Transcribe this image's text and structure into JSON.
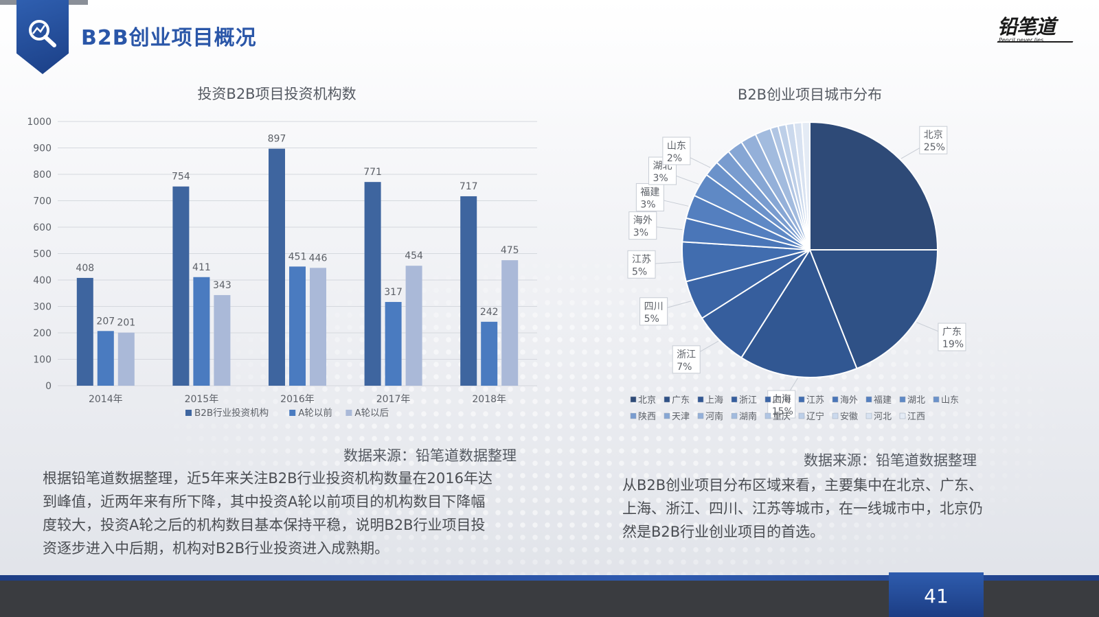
{
  "page": {
    "title": "B2B创业项目概况",
    "logo_main": "铅笔道",
    "logo_sub": "Pencil never lies",
    "page_number": "41",
    "left_source": "数据来源：铅笔道数据整理",
    "right_source": "数据来源：铅笔道数据整理",
    "left_paragraph": [
      "根据铅笔道数据整理，近5年来关注B2B行业投资机构数量在2016年达",
      "到峰值，近两年来有所下降，其中投资A轮以前项目的机构数目下降幅",
      "度较大，投资A轮之后的机构数目基本保持平稳，说明B2B行业项目投",
      "资逐步进入中后期，机构对B2B行业投资进入成熟期。"
    ],
    "right_paragraph": [
      "从B2B创业项目分布区域来看，主要集中在北京、广东、",
      "上海、浙江、四川、江苏等城市，在一线城市中，北京仍",
      "然是B2B行业创业项目的首选。"
    ]
  },
  "chart_data": [
    {
      "type": "bar",
      "title": "投资B2B项目投资机构数",
      "categories": [
        "2014年",
        "2015年",
        "2016年",
        "2017年",
        "2018年"
      ],
      "series": [
        {
          "name": "B2B行业投资机构",
          "values": [
            408,
            754,
            897,
            771,
            717
          ],
          "color": "#3e659f"
        },
        {
          "name": "A轮以前",
          "values": [
            207,
            411,
            451,
            317,
            242
          ],
          "color": "#4a7bc0"
        },
        {
          "name": "A轮以后",
          "values": [
            201,
            343,
            446,
            454,
            475
          ],
          "color": "#aab9d8"
        }
      ],
      "ylim": [
        0,
        1000
      ],
      "yticks": [
        "0",
        "100",
        "200",
        "300",
        "400",
        "500",
        "600",
        "700",
        "800",
        "900",
        "1000"
      ],
      "grid": true,
      "legend": "bottom"
    },
    {
      "type": "pie",
      "title": "B2B创业项目城市分布",
      "slices": [
        {
          "label": "北京",
          "value": 25,
          "pct_label": "25%",
          "color": "#2e4a77"
        },
        {
          "label": "广东",
          "value": 19,
          "pct_label": "19%",
          "color": "#2f5186"
        },
        {
          "label": "上海",
          "value": 15,
          "pct_label": "15%",
          "color": "#315792"
        },
        {
          "label": "浙江",
          "value": 7,
          "pct_label": "7%",
          "color": "#365e9d"
        },
        {
          "label": "四川",
          "value": 5,
          "pct_label": "5%",
          "color": "#3b65a6"
        },
        {
          "label": "江苏",
          "value": 5,
          "pct_label": "5%",
          "color": "#416daf"
        },
        {
          "label": "海外",
          "value": 3,
          "pct_label": "3%",
          "color": "#4a76b8"
        },
        {
          "label": "福建",
          "value": 3,
          "pct_label": "3%",
          "color": "#547fbf"
        },
        {
          "label": "湖北",
          "value": 3,
          "pct_label": "3%",
          "color": "#5f89c5"
        },
        {
          "label": "山东",
          "value": 2,
          "pct_label": "2%",
          "color": "#6b92ca"
        },
        {
          "label": "陕西",
          "value": 2,
          "pct_label": "",
          "color": "#799ccf"
        },
        {
          "label": "天津",
          "value": 2,
          "pct_label": "",
          "color": "#86a6d4"
        },
        {
          "label": "河南",
          "value": 2,
          "pct_label": "",
          "color": "#94b0d9"
        },
        {
          "label": "湖南",
          "value": 2,
          "pct_label": "",
          "color": "#a2bbde"
        },
        {
          "label": "重庆",
          "value": 1,
          "pct_label": "",
          "color": "#b0c5e3"
        },
        {
          "label": "辽宁",
          "value": 1,
          "pct_label": "",
          "color": "#bdcfe8"
        },
        {
          "label": "安徽",
          "value": 1,
          "pct_label": "",
          "color": "#cbd9ed"
        },
        {
          "label": "河北",
          "value": 1,
          "pct_label": "",
          "color": "#d8e2f1"
        },
        {
          "label": "江西",
          "value": 1,
          "pct_label": "",
          "color": "#e4ebf5"
        }
      ],
      "legend": "bottom"
    }
  ]
}
